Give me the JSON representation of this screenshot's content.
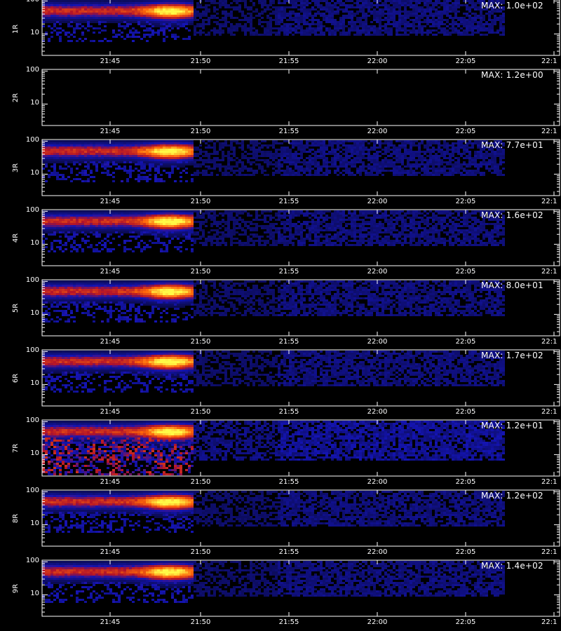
{
  "chart_data": {
    "type": "heatmap",
    "x_ticks": [
      "21:45",
      "21:50",
      "21:55",
      "22:00",
      "22:05",
      "22:1"
    ],
    "y_ticks": [
      "100",
      "10"
    ],
    "colors": {
      "background": "#000000",
      "low": "#1010a0",
      "mid": "#c01818",
      "high": "#ffe040",
      "axis": "#ffffff"
    },
    "panels": [
      {
        "label": "1R",
        "max_label": "MAX: 1.0e+02",
        "max": 100,
        "active": true
      },
      {
        "label": "2R",
        "max_label": "MAX: 1.2e+00",
        "max": 1.2,
        "active": false
      },
      {
        "label": "3R",
        "max_label": "MAX: 7.7e+01",
        "max": 77,
        "active": true
      },
      {
        "label": "4R",
        "max_label": "MAX: 1.6e+02",
        "max": 160,
        "active": true
      },
      {
        "label": "5R",
        "max_label": "MAX: 8.0e+01",
        "max": 80,
        "active": true
      },
      {
        "label": "6R",
        "max_label": "MAX: 1.7e+02",
        "max": 170,
        "active": true
      },
      {
        "label": "7R",
        "max_label": "MAX: 1.2e+01",
        "max": 12,
        "active": true
      },
      {
        "label": "8R",
        "max_label": "MAX: 1.2e+02",
        "max": 120,
        "active": true
      },
      {
        "label": "9R",
        "max_label": "MAX: 1.4e+02",
        "max": 140,
        "active": true
      }
    ]
  }
}
